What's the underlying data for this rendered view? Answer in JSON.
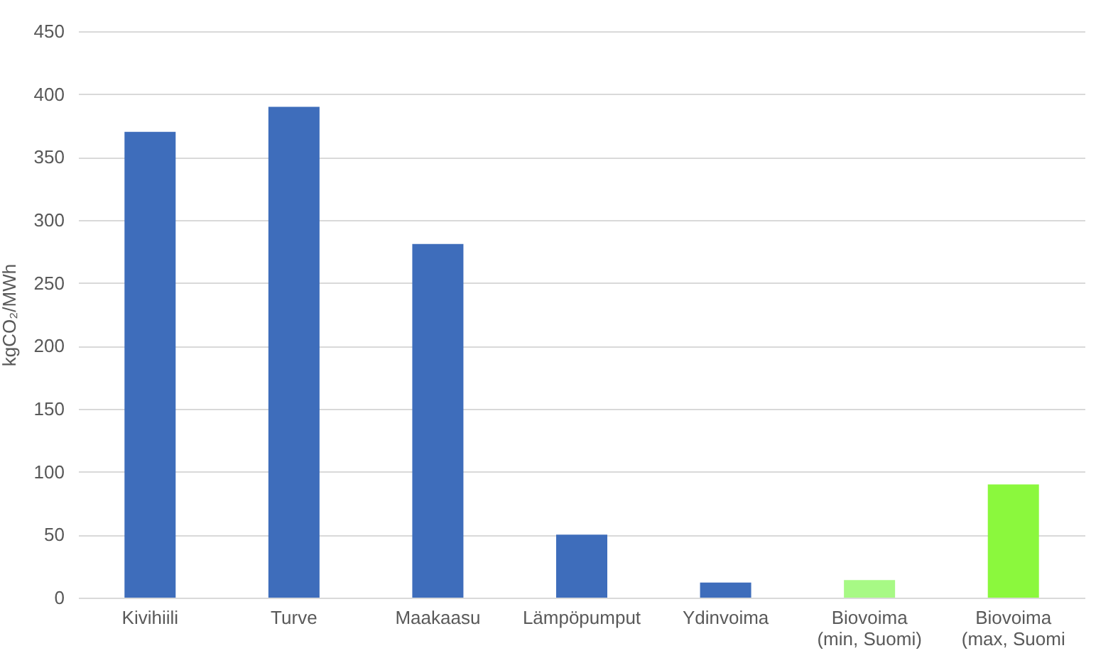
{
  "chart_data": {
    "type": "bar",
    "ylabel": "kgCO₂/MWh",
    "categories": [
      "Kivihiili",
      "Turve",
      "Maakaasu",
      "Lämpöpumput",
      "Ydinvoima",
      "Biovoima\n(min, Suomi)",
      "Biovoima\n(max, Suomi"
    ],
    "values": [
      370,
      390,
      281,
      50,
      12,
      14,
      90
    ],
    "colors": [
      "#3e6dbb",
      "#3e6dbb",
      "#3e6dbb",
      "#3e6dbb",
      "#3e6dbb",
      "#a7f985",
      "#8bf83d"
    ],
    "ylim": [
      0,
      450
    ],
    "yticks": [
      0,
      50,
      100,
      150,
      200,
      250,
      300,
      350,
      400,
      450
    ],
    "grid": "y"
  }
}
